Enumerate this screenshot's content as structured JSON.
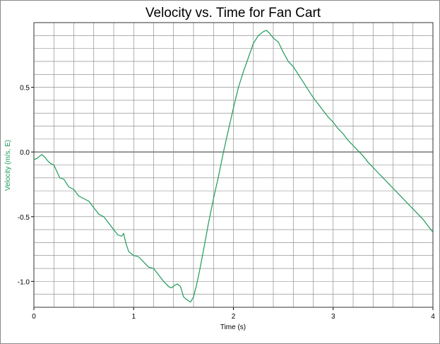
{
  "chart_data": {
    "type": "line",
    "title": "Velocity vs. Time for Fan Cart",
    "xlabel": "Time (s)",
    "ylabel": "Velocity (m/s, E)",
    "xlim": [
      0,
      4
    ],
    "ylim": [
      -1.2,
      1.0
    ],
    "x_ticks": [
      0,
      1,
      2,
      3,
      4
    ],
    "x_tick_labels": [
      "0",
      "1",
      "2",
      "3",
      "4"
    ],
    "y_ticks": [
      0.5,
      0.0,
      -0.5,
      -1.0
    ],
    "y_tick_labels": [
      "0.5",
      "0.0",
      "-0.5",
      "-1.0"
    ],
    "grid": true,
    "x_minor_step": 0.2,
    "y_minor_step": 0.1,
    "colors": {
      "line": "#1f9a5a",
      "ylabel": "#1f9a5a",
      "grid": "#7f7f7f",
      "zero_line": "#808080"
    },
    "series": [
      {
        "name": "",
        "x": [
          0,
          0.03,
          0.06,
          0.08,
          0.11,
          0.14,
          0.17,
          0.2,
          0.23,
          0.26,
          0.3,
          0.35,
          0.4,
          0.45,
          0.5,
          0.55,
          0.6,
          0.65,
          0.7,
          0.75,
          0.8,
          0.84,
          0.88,
          0.9,
          0.92,
          0.95,
          1.0,
          1.05,
          1.1,
          1.15,
          1.2,
          1.25,
          1.3,
          1.35,
          1.38,
          1.41,
          1.44,
          1.47,
          1.5,
          1.53,
          1.57,
          1.6,
          1.63,
          1.66,
          1.7,
          1.75,
          1.8,
          1.85,
          1.9,
          1.95,
          2.0,
          2.05,
          2.1,
          2.15,
          2.2,
          2.25,
          2.3,
          2.33,
          2.36,
          2.4,
          2.45,
          2.5,
          2.55,
          2.6,
          2.65,
          2.7,
          2.75,
          2.8,
          2.85,
          2.9,
          2.95,
          3.0,
          3.05,
          3.1,
          3.15,
          3.2,
          3.25,
          3.3,
          3.35,
          3.4,
          3.45,
          3.5,
          3.55,
          3.6,
          3.65,
          3.7,
          3.75,
          3.8,
          3.85,
          3.9,
          3.95,
          4.0
        ],
        "y": [
          -0.06,
          -0.05,
          -0.03,
          -0.02,
          -0.04,
          -0.07,
          -0.09,
          -0.1,
          -0.15,
          -0.2,
          -0.21,
          -0.27,
          -0.29,
          -0.34,
          -0.36,
          -0.38,
          -0.43,
          -0.48,
          -0.5,
          -0.55,
          -0.6,
          -0.64,
          -0.65,
          -0.63,
          -0.7,
          -0.77,
          -0.8,
          -0.81,
          -0.85,
          -0.89,
          -0.9,
          -0.95,
          -1.0,
          -1.04,
          -1.05,
          -1.03,
          -1.02,
          -1.04,
          -1.12,
          -1.14,
          -1.16,
          -1.12,
          -1.03,
          -0.92,
          -0.76,
          -0.55,
          -0.36,
          -0.19,
          0.0,
          0.17,
          0.34,
          0.5,
          0.62,
          0.73,
          0.84,
          0.9,
          0.93,
          0.94,
          0.92,
          0.88,
          0.85,
          0.77,
          0.7,
          0.66,
          0.6,
          0.54,
          0.48,
          0.42,
          0.37,
          0.32,
          0.27,
          0.23,
          0.18,
          0.14,
          0.09,
          0.05,
          0.01,
          -0.03,
          -0.08,
          -0.12,
          -0.16,
          -0.2,
          -0.24,
          -0.28,
          -0.32,
          -0.36,
          -0.4,
          -0.44,
          -0.48,
          -0.52,
          -0.57,
          -0.62
        ]
      }
    ]
  }
}
